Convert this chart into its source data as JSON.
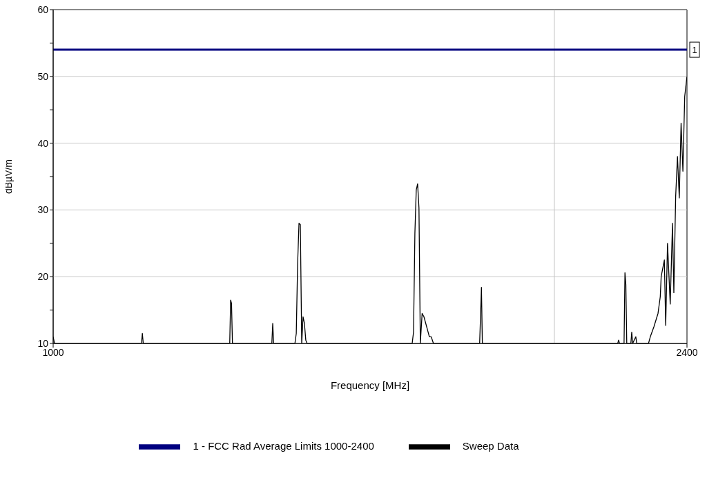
{
  "chart_data": {
    "type": "line",
    "xlabel": "Frequency [MHz]",
    "ylabel": "dBµV/m",
    "xlim": [
      1000,
      2400
    ],
    "xticks": [
      1000,
      2400
    ],
    "ylim": [
      10,
      60
    ],
    "yticks": [
      10,
      {
        "value": 15,
        "label": null
      },
      20,
      {
        "value": 25,
        "label": null
      },
      30,
      {
        "value": 35,
        "label": null
      },
      40,
      {
        "value": 45,
        "label": null
      },
      50,
      {
        "value": 55,
        "label": null
      },
      60
    ],
    "grid": "y",
    "legend": "bottom",
    "line_style": "solid",
    "marker": "none",
    "ref_lines": [
      {
        "axis": "x",
        "value": 2107,
        "color": "#c0c0c0"
      }
    ],
    "annotations": [
      {
        "text": "1",
        "x": 2400,
        "y": 54
      }
    ],
    "series": [
      {
        "name": "Sweep Data",
        "color": "#000000",
        "x": [
          1000,
          1003,
          1195,
          1197,
          1199,
          1390,
          1392,
          1394,
          1396,
          1483,
          1485,
          1487,
          1534,
          1537,
          1540,
          1543,
          1546,
          1549,
          1552,
          1555,
          1558,
          1561,
          1793,
          1796,
          1799,
          1802,
          1805,
          1808,
          1811,
          1815,
          1819,
          1823,
          1827,
          1831,
          1835,
          1840,
          1942,
          1944,
          1946,
          1948,
          2247,
          2249,
          2251,
          2261,
          2263,
          2265,
          2267,
          2276,
          2278,
          2280,
          2287,
          2289,
          2315,
          2319,
          2327,
          2336,
          2341,
          2343,
          2350,
          2353,
          2357,
          2363,
          2368,
          2371,
          2375,
          2379,
          2383,
          2387,
          2391,
          2395,
          2400
        ],
        "values": [
          11,
          10,
          10,
          11.5,
          10,
          10,
          16.5,
          16,
          10,
          10,
          13,
          10,
          10,
          11.5,
          22,
          28,
          27.8,
          10,
          14,
          13,
          10.5,
          10,
          10,
          11.7,
          26.5,
          33,
          33.9,
          30.3,
          10,
          14.5,
          14,
          13,
          12,
          11,
          11,
          10,
          10,
          14.1,
          18.4,
          10,
          10,
          10.5,
          10,
          10,
          20.6,
          18.8,
          10,
          10,
          11.7,
          10,
          11,
          10,
          10,
          11,
          12.5,
          14.5,
          17,
          20,
          22.5,
          12.7,
          25,
          15.9,
          28,
          17.6,
          32,
          38,
          31.8,
          43,
          35.8,
          47,
          50
        ]
      },
      {
        "name": "1 - FCC Rad Average Limits 1000-2400",
        "color": "#000080",
        "x": [
          1000,
          2400
        ],
        "values": [
          54,
          54
        ]
      }
    ]
  }
}
